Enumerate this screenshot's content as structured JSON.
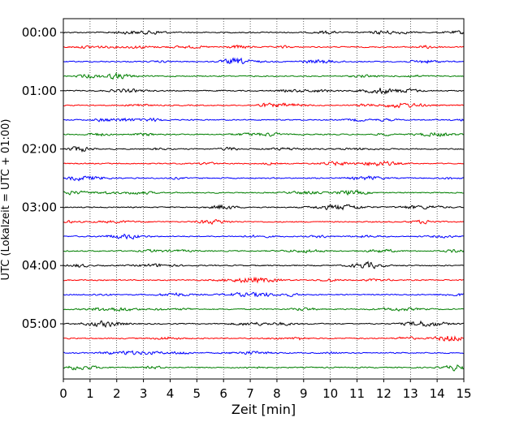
{
  "chart_data": {
    "type": "line",
    "subtype": "helicorder",
    "xlabel": "Zeit  [min]",
    "ylabel": "UTC (Lokalzeit = UTC + 01:00)",
    "xlim": [
      0,
      15
    ],
    "x_ticks": [
      "0",
      "1",
      "2",
      "3",
      "4",
      "5",
      "6",
      "7",
      "8",
      "9",
      "10",
      "11",
      "12",
      "13",
      "14",
      "15"
    ],
    "y_tick_labels": [
      "00:00",
      "01:00",
      "02:00",
      "03:00",
      "04:00",
      "05:00"
    ],
    "traces_per_hour": 4,
    "trace_minutes": 15,
    "trace_count": 24,
    "trace_colors": [
      "#000000",
      "#ff0000",
      "#0000ff",
      "#007f00"
    ],
    "grid": "vertical dotted at each minute",
    "legend": "none"
  }
}
